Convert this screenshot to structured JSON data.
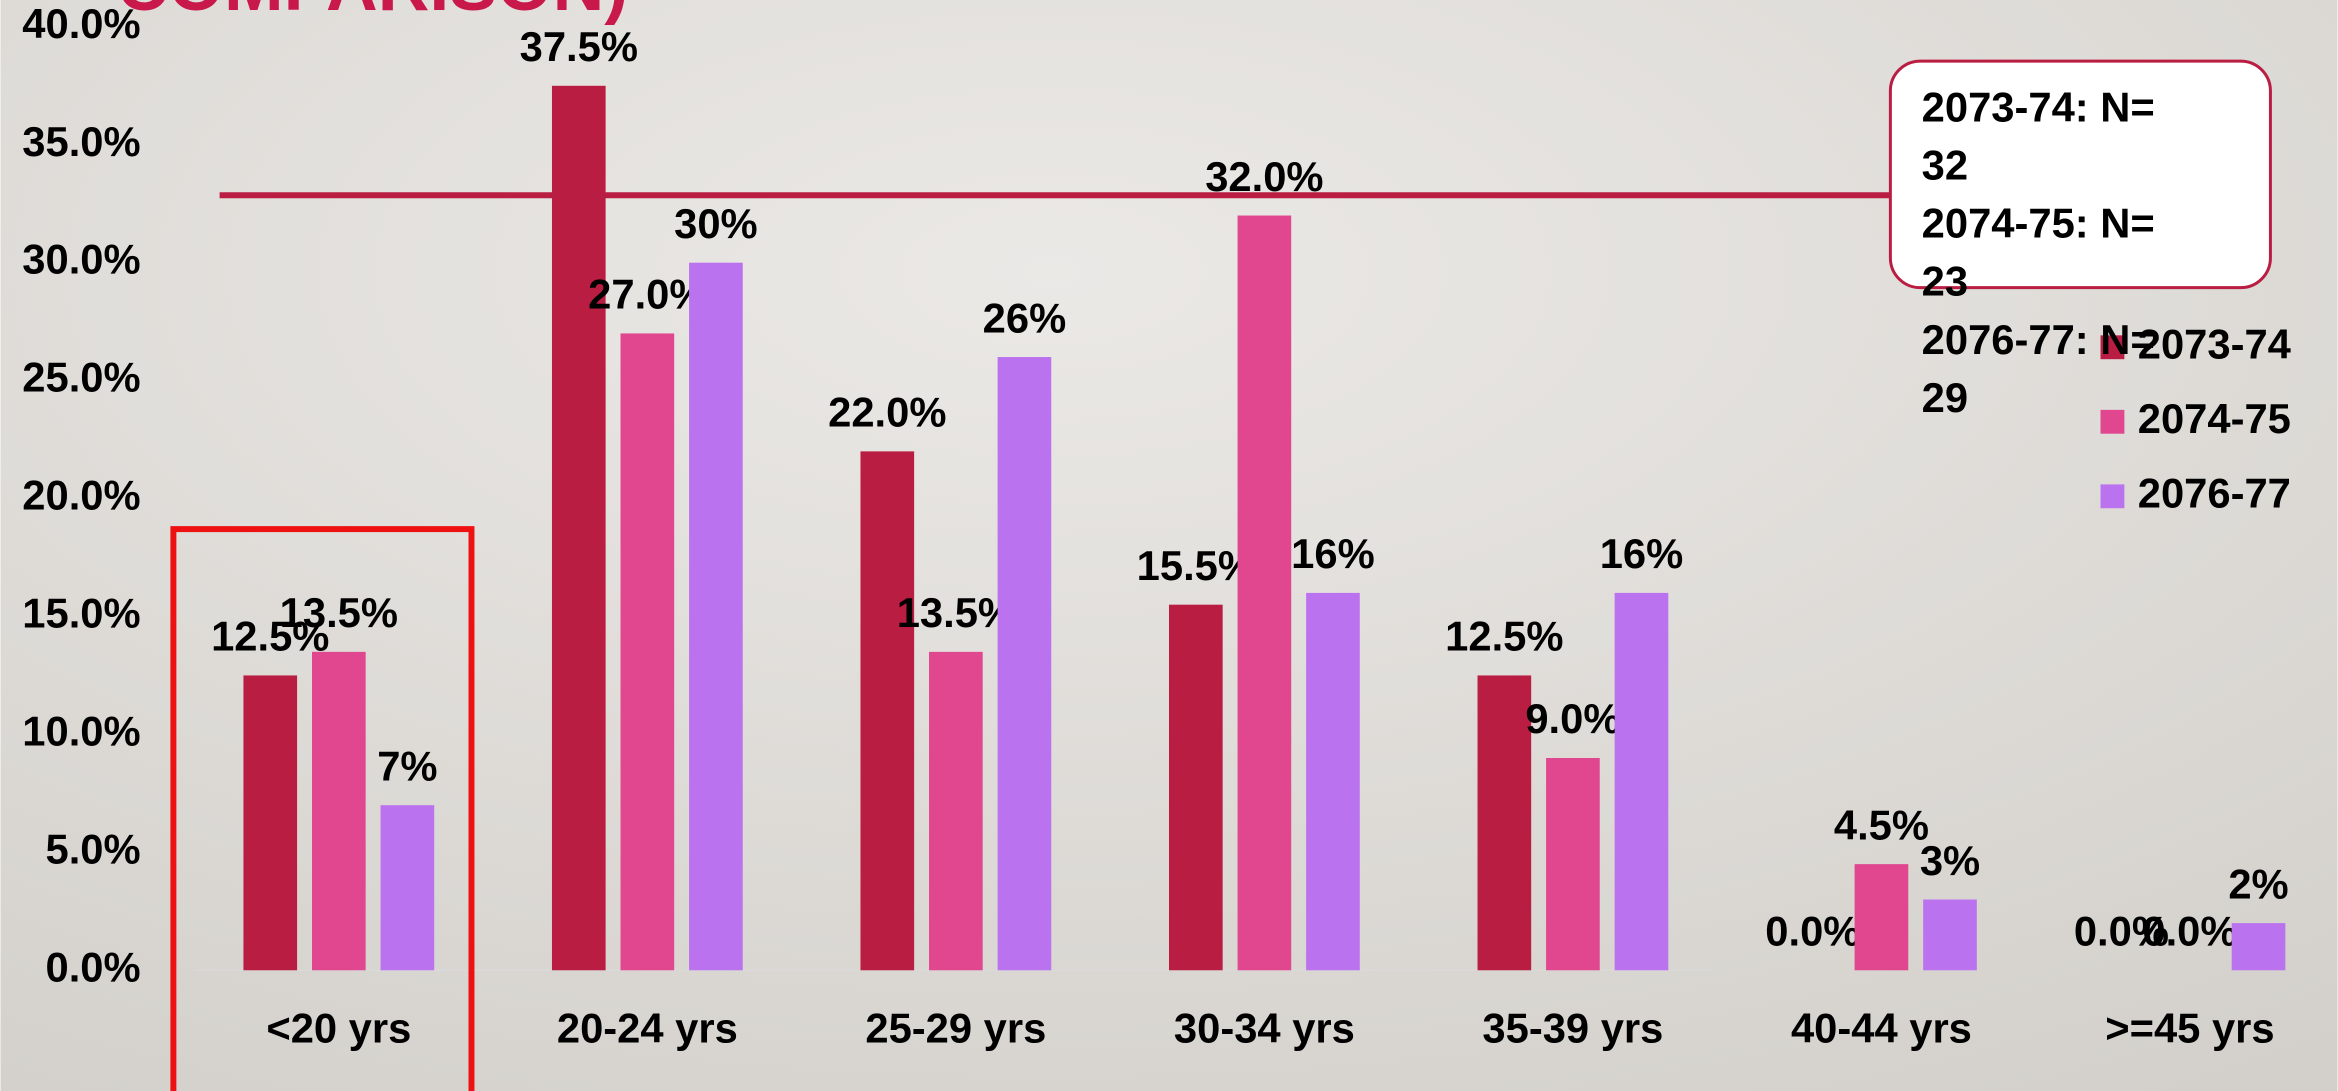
{
  "chart_data": {
    "type": "bar",
    "title": "COMPARISON)",
    "categories": [
      "<20 yrs",
      "20-24 yrs",
      "25-29 yrs",
      "30-34 yrs",
      "35-39 yrs",
      "40-44 yrs",
      ">=45 yrs"
    ],
    "series": [
      {
        "name": "2073-74",
        "color": "#b91d42",
        "values": [
          12.5,
          37.5,
          22.0,
          15.5,
          12.5,
          0.0,
          0.0
        ],
        "value_labels": [
          "12.5%",
          "37.5%",
          "22.0%",
          "15.5%",
          "12.5%",
          "0.0%",
          "0.0%"
        ]
      },
      {
        "name": "2074-75",
        "color": "#e0478e",
        "values": [
          13.5,
          27.0,
          13.5,
          32.0,
          9.0,
          4.5,
          0.0
        ],
        "value_labels": [
          "13.5%",
          "27.0%",
          "13.5%",
          "32.0%",
          "9.0%",
          "4.5%",
          "0.0%"
        ]
      },
      {
        "name": "2076-77",
        "color": "#bb72ee",
        "values": [
          7,
          30,
          26,
          16,
          16,
          3,
          2
        ],
        "value_labels": [
          "7%",
          "30%",
          "26%",
          "16%",
          "16%",
          "3%",
          "2%"
        ]
      }
    ],
    "ylim": [
      0,
      40
    ],
    "yticks": [
      {
        "value": 0,
        "label": "0.0%"
      },
      {
        "value": 5,
        "label": "5.0%"
      },
      {
        "value": 10,
        "label": "10.0%"
      },
      {
        "value": 15,
        "label": "15.0%"
      },
      {
        "value": 20,
        "label": "20.0%"
      },
      {
        "value": 25,
        "label": "25.0%"
      },
      {
        "value": 30,
        "label": "30.0%"
      },
      {
        "value": 35,
        "label": "35.0%"
      },
      {
        "value": 40,
        "label": "40.0%"
      }
    ],
    "grid": false,
    "legend": "right",
    "annotations": [
      "2073-74: N= 32",
      "2074-75: N= 23",
      "2076-77: N= 29"
    ]
  }
}
